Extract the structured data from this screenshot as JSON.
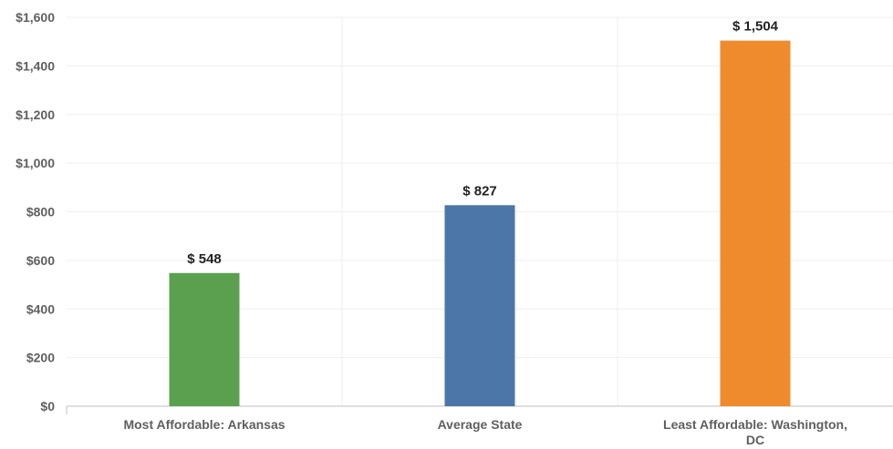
{
  "chart_data": {
    "type": "bar",
    "categories": [
      "Most Affordable: Arkansas",
      "Average State",
      "Least Affordable: Washington, DC"
    ],
    "values": [
      548,
      827,
      1504
    ],
    "data_labels": [
      "$ 548",
      "$ 827",
      "$ 1,504"
    ],
    "bar_colors": [
      "#5aa04f",
      "#4b76a7",
      "#f08b2d"
    ],
    "ylim": [
      0,
      1600
    ],
    "yticks": [
      0,
      200,
      400,
      600,
      800,
      1000,
      1200,
      1400,
      1600
    ],
    "ytick_labels": [
      "$0",
      "$200",
      "$400",
      "$600",
      "$800",
      "$1,000",
      "$1,200",
      "$1,400",
      "$1,600"
    ],
    "title": "",
    "xlabel": "",
    "ylabel": "",
    "grid": true,
    "legend": "none"
  }
}
